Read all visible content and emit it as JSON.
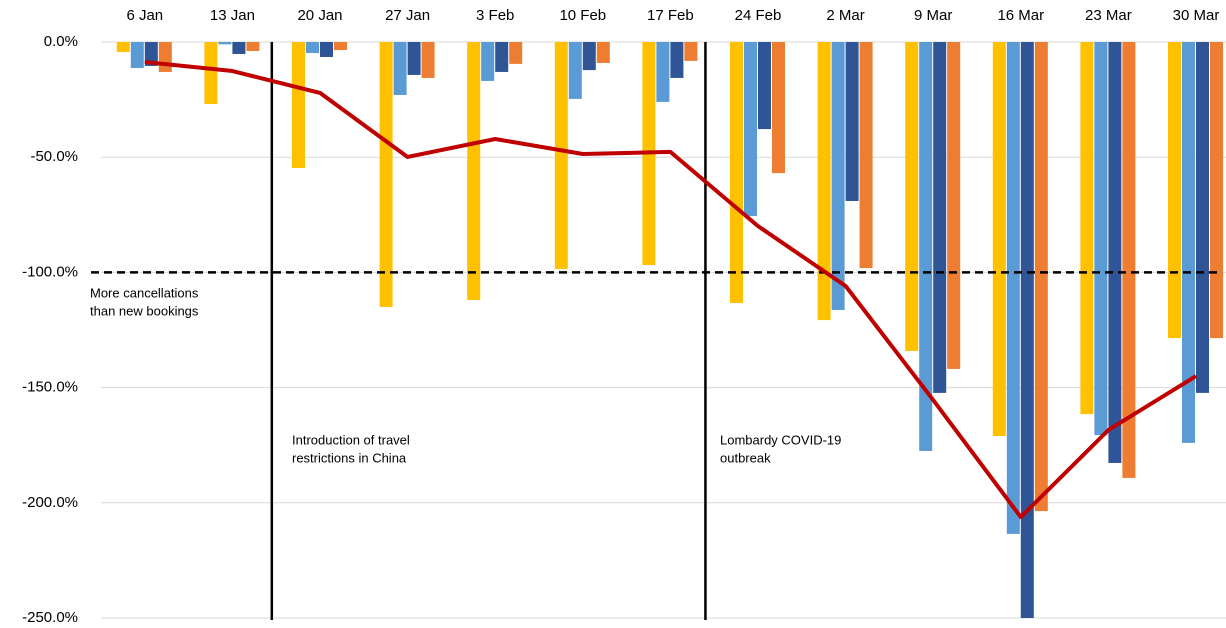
{
  "chart_data": {
    "type": "bar",
    "categories": [
      "6 Jan",
      "13 Jan",
      "20 Jan",
      "27 Jan",
      "3 Feb",
      "10 Feb",
      "17 Feb",
      "24 Feb",
      "2 Mar",
      "9 Mar",
      "16 Mar",
      "23 Mar",
      "30 Mar"
    ],
    "series": [
      {
        "color": "#ffc000",
        "values": [
          -4.3,
          -26.9,
          -54.7,
          -115,
          -112,
          -98.5,
          -96.8,
          -113.3,
          -120.7,
          -134.1,
          -171,
          -161.5,
          -128.5
        ]
      },
      {
        "color": "#5b9bd5",
        "values": [
          -11.3,
          -1,
          -4.8,
          -23,
          -16.9,
          -24.7,
          -26,
          -75.5,
          -116.3,
          -177.5,
          -213.5,
          -170.6,
          -174
        ]
      },
      {
        "color": "#2f5597",
        "values": [
          -10.4,
          -5.2,
          -6.5,
          -14.3,
          -13,
          -12.2,
          -15.6,
          -37.8,
          -69,
          -152.3,
          -250,
          -182.7,
          -152.3
        ]
      },
      {
        "color": "#ed7d31",
        "values": [
          -13,
          -3.9,
          -3.5,
          -15.6,
          -9.5,
          -9.1,
          -8.2,
          -56.9,
          -98.1,
          -141.9,
          -203.6,
          -189.2,
          -128.5
        ]
      },
      {
        "type": "line",
        "color": "#c00000",
        "values": [
          -8.7,
          -12.6,
          -22.1,
          -49.9,
          -42.1,
          -48.6,
          -47.7,
          -79.9,
          -105.9,
          -155.4,
          -206.2,
          -168.4,
          -145
        ]
      }
    ],
    "ylim": [
      0,
      -250
    ],
    "yticks": [
      {
        "value": 0,
        "label": "0.0%"
      },
      {
        "value": -50,
        "label": "-50.0%"
      },
      {
        "value": -100,
        "label": "-100.0%"
      },
      {
        "value": -150,
        "label": "-150.0%"
      },
      {
        "value": -200,
        "label": "-200.0%"
      },
      {
        "value": -250,
        "label": "-250.0%"
      }
    ],
    "grid": true,
    "reference_line": -100,
    "annotations": [
      [
        "More cancellations",
        "than new bookings"
      ],
      [
        "Introduction of travel",
        "restrictions in China"
      ],
      [
        "Lombardy COVID-19",
        "outbreak"
      ]
    ]
  }
}
